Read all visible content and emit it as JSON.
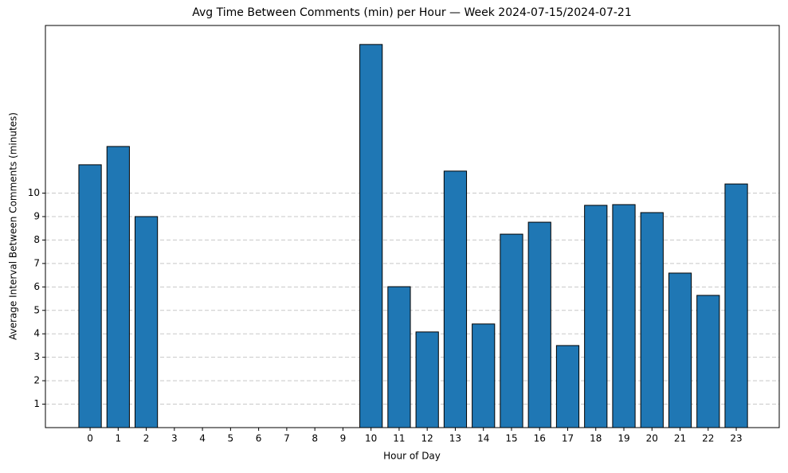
{
  "chart_data": {
    "type": "bar",
    "title": "Avg Time Between Comments (min) per Hour — Week 2024-07-15/2024-07-21",
    "xlabel": "Hour of Day",
    "ylabel": "Average Interval Between Comments (minutes)",
    "categories": [
      "0",
      "1",
      "2",
      "3",
      "4",
      "5",
      "6",
      "7",
      "8",
      "9",
      "10",
      "11",
      "12",
      "13",
      "14",
      "15",
      "16",
      "17",
      "18",
      "19",
      "20",
      "21",
      "22",
      "23"
    ],
    "values": [
      11.21,
      11.99,
      9.0,
      0,
      0,
      0,
      0,
      0,
      0,
      0,
      16.34,
      6.01,
      4.08,
      10.94,
      4.42,
      8.25,
      8.76,
      3.5,
      9.48,
      9.51,
      9.17,
      6.59,
      5.64,
      10.39
    ],
    "color": "#1f77b4",
    "edgecolor": "#000000",
    "ylim": [
      0,
      17.15
    ],
    "yticks": [
      1,
      2,
      3,
      4,
      5,
      6,
      7,
      8,
      9,
      10
    ],
    "grid": true
  }
}
